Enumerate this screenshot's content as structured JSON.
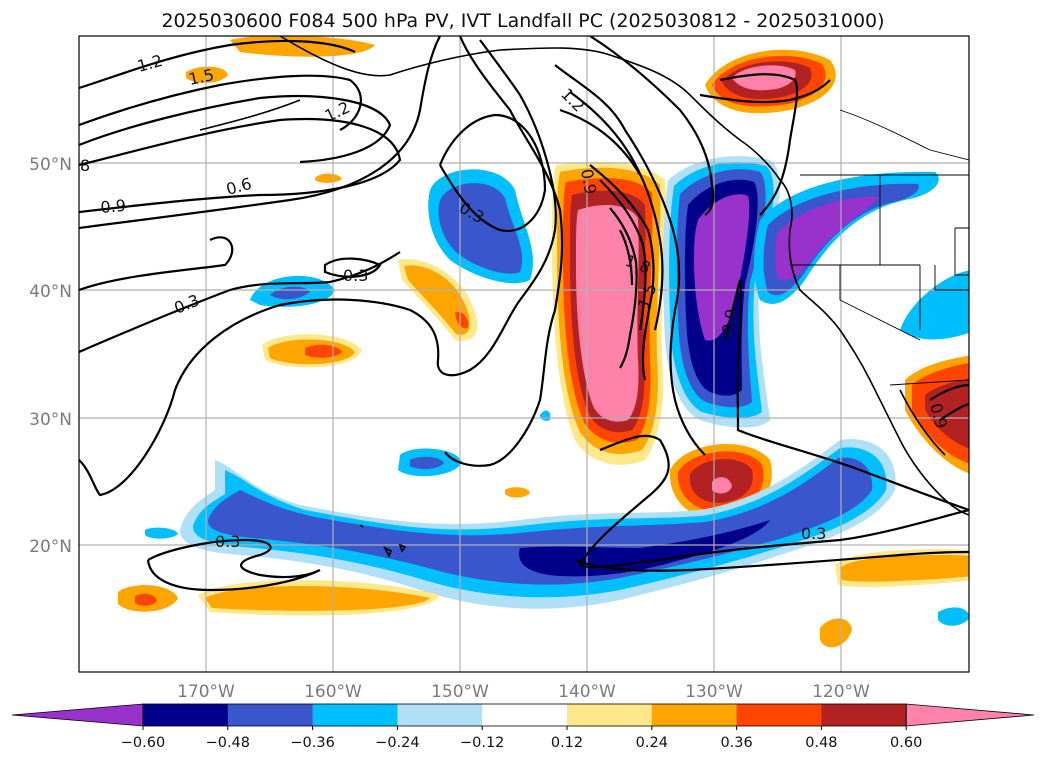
{
  "figure": {
    "title": "2025030600 F084 500 hPa PV, IVT Landfall PC (2025030812 - 2025031000)"
  },
  "map": {
    "lon_labels": [
      "170°W",
      "160°W",
      "150°W",
      "140°W",
      "130°W",
      "120°W"
    ],
    "lat_labels": [
      "50°N",
      "40°N",
      "30°N",
      "20°N"
    ],
    "extent": {
      "lon_min": -180,
      "lon_max": -110,
      "lat_min": 10,
      "lat_max": 60
    },
    "gridlines": true
  },
  "contour_labels": [
    {
      "text": "1.2"
    },
    {
      "text": "1.5"
    },
    {
      "text": "1.2"
    },
    {
      "text": "8"
    },
    {
      "text": "0.6"
    },
    {
      "text": "0.9"
    },
    {
      "text": "0.3"
    },
    {
      "text": "0.3"
    },
    {
      "text": "0.3"
    },
    {
      "text": "1.2"
    },
    {
      "text": "0.9"
    },
    {
      "text": "1.8"
    },
    {
      "text": "1.5"
    },
    {
      "text": "0.9"
    },
    {
      "text": "0.3"
    },
    {
      "text": "0.3"
    },
    {
      "text": "0.9"
    }
  ],
  "colorbar": {
    "tick_labels": [
      "−0.60",
      "−0.48",
      "−0.36",
      "−0.24",
      "−0.12",
      "0.12",
      "0.24",
      "0.36",
      "0.48",
      "0.60"
    ],
    "levels": [
      -0.6,
      -0.48,
      -0.36,
      -0.24,
      -0.12,
      0.12,
      0.24,
      0.36,
      0.48,
      0.6
    ],
    "colors": [
      "#9932cc",
      "#00008b",
      "#3a56cc",
      "#00bfff",
      "#b0e0f8",
      "#ffffff",
      "#ffe88a",
      "#ffa500",
      "#ff4500",
      "#b22222",
      "#ff82ab"
    ],
    "extend": "both"
  },
  "colors": {
    "purple": "#9932cc",
    "navy": "#00008b",
    "blue": "#3a56cc",
    "cyan": "#00bfff",
    "lightblue": "#b0e0f8",
    "lightyellow": "#ffe88a",
    "orange": "#ffa500",
    "orangered": "#ff4500",
    "firebrick": "#b22222",
    "pink": "#ff82ab"
  }
}
